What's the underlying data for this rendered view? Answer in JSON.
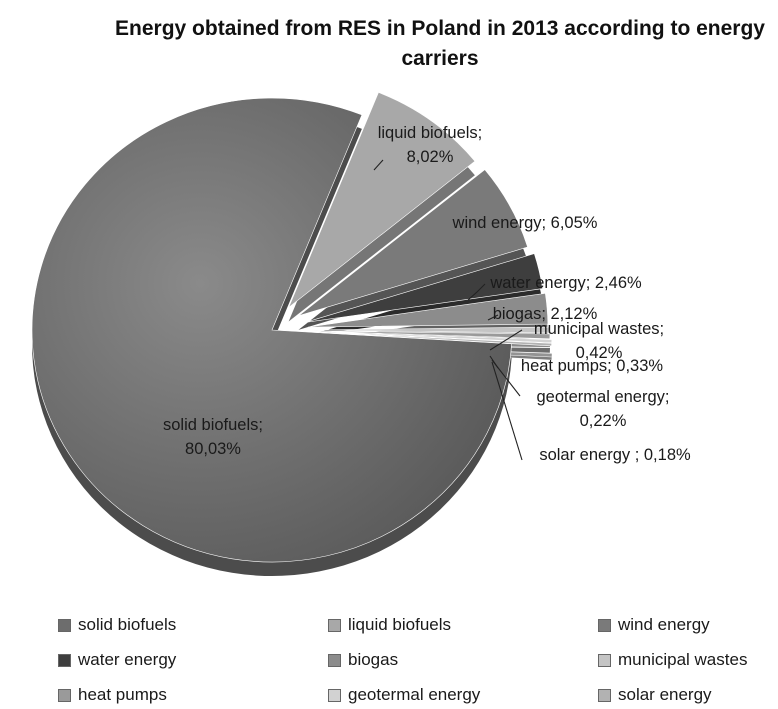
{
  "chart_data": {
    "type": "pie",
    "title": "Energy obtained from RES in Poland in 2013 according to energy carriers",
    "categories": [
      "solid biofuels",
      "liquid biofuels",
      "wind energy",
      "water energy",
      "biogas",
      "municipal wastes",
      "heat pumps",
      "geotermal energy",
      "solar energy"
    ],
    "values": [
      80.03,
      8.02,
      6.05,
      2.46,
      2.12,
      0.42,
      0.33,
      0.22,
      0.18
    ],
    "data_labels": [
      [
        "solid biofuels;",
        "80,03%"
      ],
      [
        "liquid biofuels;",
        "8,02%"
      ],
      [
        "wind energy; 6,05%"
      ],
      [
        "water energy; 2,46%"
      ],
      [
        "biogas; 2,12%"
      ],
      [
        "municipal wastes;",
        "0,42%"
      ],
      [
        "heat pumps; 0,33%"
      ],
      [
        "geotermal energy;",
        "0,22%"
      ],
      [
        "solar energy ; 0,18%"
      ]
    ],
    "colors": [
      "#6d6d6d",
      "#a8a8a8",
      "#7a7a7a",
      "#3e3e3e",
      "#8c8c8c",
      "#c4c4c4",
      "#9a9a9a",
      "#d2d2d2",
      "#b2b2b2"
    ],
    "legend_position": "bottom",
    "style": "3d exploded pie"
  }
}
